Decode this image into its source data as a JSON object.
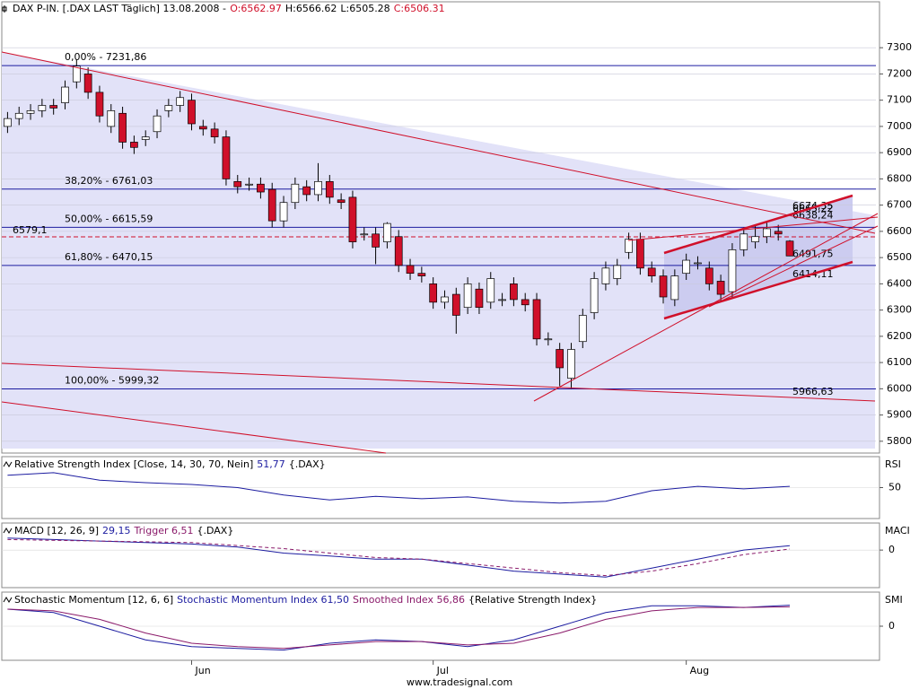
{
  "chart_data": [
    {
      "type": "candlestick",
      "title": "DAX P-IN. [.DAX LAST Täglich] 13.08.2008 -",
      "ohlc_labels": [
        "O:6562.97",
        "H:6566.62",
        "L:6505.28",
        "C:6506.31"
      ],
      "categories": [
        null,
        null,
        null,
        null,
        null,
        null,
        null,
        null,
        null,
        null,
        null,
        null,
        null,
        null,
        null,
        null,
        "Jun",
        null,
        null,
        null,
        null,
        null,
        null,
        null,
        null,
        null,
        null,
        null,
        null,
        null,
        null,
        null,
        null,
        null,
        null,
        null,
        null,
        "Jul",
        null,
        null,
        null,
        null,
        null,
        null,
        null,
        null,
        null,
        null,
        null,
        null,
        null,
        null,
        null,
        null,
        null,
        null,
        null,
        null,
        null,
        "Aug",
        null,
        null,
        null,
        null,
        null,
        null,
        null,
        null,
        null
      ],
      "open": [
        7000,
        7030,
        7050,
        7060,
        7080,
        7090,
        7170,
        7200,
        7130,
        7000,
        7050,
        6940,
        6950,
        6980,
        7060,
        7080,
        7100,
        7000,
        6990,
        6960,
        6790,
        6780,
        6780,
        6760,
        6640,
        6710,
        6770,
        6740,
        6790,
        6720,
        6730,
        6590,
        6590,
        6560,
        6580,
        6470,
        6440,
        6400,
        6330,
        6360,
        6310,
        6380,
        6330,
        6340,
        6400,
        6340,
        6340,
        6190,
        6150,
        6040,
        6180,
        6290,
        6400,
        6420,
        6520,
        6570,
        6460,
        6430,
        6340,
        6440,
        6480,
        6460,
        6410,
        6370,
        6530,
        6560,
        6580,
        6600,
        6562.97
      ],
      "high": [
        7055,
        7075,
        7085,
        7105,
        7105,
        7175,
        7255,
        7225,
        7155,
        7085,
        7075,
        6965,
        6985,
        7065,
        7105,
        7135,
        7125,
        7025,
        7015,
        6985,
        6815,
        6805,
        6805,
        6785,
        6735,
        6805,
        6795,
        6860,
        6815,
        6745,
        6755,
        6615,
        6615,
        6635,
        6605,
        6495,
        6465,
        6425,
        6375,
        6385,
        6425,
        6405,
        6445,
        6365,
        6425,
        6365,
        6365,
        6215,
        6175,
        6175,
        6305,
        6445,
        6485,
        6495,
        6595,
        6595,
        6485,
        6455,
        6455,
        6515,
        6505,
        6485,
        6435,
        6555,
        6615,
        6620,
        6635,
        6625,
        6566.62
      ],
      "low": [
        6975,
        7005,
        7025,
        7035,
        7045,
        7065,
        7145,
        7105,
        7015,
        6975,
        6915,
        6895,
        6925,
        6955,
        7035,
        7055,
        6985,
        6965,
        6935,
        6775,
        6745,
        6755,
        6725,
        6615,
        6615,
        6685,
        6715,
        6715,
        6705,
        6685,
        6535,
        6565,
        6475,
        6535,
        6445,
        6415,
        6405,
        6305,
        6305,
        6210,
        6285,
        6285,
        6305,
        6315,
        6315,
        6295,
        6165,
        6165,
        6010,
        6000,
        6155,
        6265,
        6375,
        6395,
        6495,
        6435,
        6405,
        6325,
        6315,
        6415,
        6455,
        6375,
        6335,
        6345,
        6505,
        6535,
        6555,
        6565,
        6505.28
      ],
      "close": [
        7030,
        7050,
        7060,
        7080,
        7070,
        7150,
        7230,
        7130,
        7040,
        7060,
        6940,
        6920,
        6960,
        7040,
        7080,
        7110,
        7010,
        6990,
        6960,
        6800,
        6770,
        6780,
        6750,
        6640,
        6710,
        6780,
        6740,
        6790,
        6730,
        6710,
        6560,
        6590,
        6540,
        6630,
        6470,
        6440,
        6430,
        6330,
        6350,
        6280,
        6400,
        6310,
        6420,
        6340,
        6340,
        6320,
        6190,
        6190,
        6080,
        6150,
        6280,
        6420,
        6460,
        6470,
        6570,
        6460,
        6430,
        6350,
        6430,
        6490,
        6480,
        6400,
        6360,
        6530,
        6590,
        6580,
        6610,
        6590,
        6506.31
      ],
      "up_color": "#ffffff",
      "down_color": "#d0102a",
      "ylim": [
        5755,
        7475
      ],
      "yticks": [
        5800,
        5900,
        6000,
        6100,
        6200,
        6300,
        6400,
        6500,
        6600,
        6700,
        6800,
        6900,
        7000,
        7100,
        7200,
        7300
      ],
      "levels": [
        {
          "label": "0,00% - 7231,86",
          "value": 7231.86
        },
        {
          "label": "38,20% - 6761,03",
          "value": 6761.03
        },
        {
          "label": "50,00% - 6615,59",
          "value": 6615.59
        },
        {
          "label": "61,80% - 6470,15",
          "value": 6470.15
        },
        {
          "label": "100,00% - 5999,32",
          "value": 5999.32
        }
      ],
      "level_color": "#1c1ca0",
      "markers": [
        {
          "label": "6579,1",
          "value": 6579.1
        }
      ],
      "price_labels": [
        {
          "label": "6674,35",
          "value": 6674.35
        },
        {
          "label": "6665,22",
          "value": 6665.22
        },
        {
          "label": "6638,24",
          "value": 6638.24
        },
        {
          "label": "6491,75",
          "value": 6491.75
        },
        {
          "label": "6414,11",
          "value": 6414.11
        },
        {
          "label": "5966,63",
          "value": 5966.63
        }
      ],
      "marker_color": "#d0102a"
    },
    {
      "type": "line",
      "title": "Relative Strength Index [Close, 14, 30, 70, Nein]",
      "source": "{.DAX}",
      "axis_label": "RSI",
      "x": [
        0,
        4,
        8,
        12,
        16,
        20,
        24,
        28,
        32,
        36,
        40,
        44,
        48,
        52,
        56,
        60,
        64,
        68
      ],
      "xlim": [
        -0.5,
        75.8
      ],
      "series": [
        {
          "name": "51,77",
          "color": "#1c1ca0",
          "values": [
            70,
            74,
            62,
            58,
            55,
            50,
            38,
            30,
            36,
            32,
            35,
            28,
            25,
            28,
            45,
            52,
            48,
            52
          ]
        }
      ],
      "ylim": [
        0,
        100
      ],
      "yticks": [
        50
      ]
    },
    {
      "type": "line",
      "title": "MACD [12, 26, 9]",
      "source": "{.DAX}",
      "axis_label": "MACI",
      "x": [
        0,
        4,
        8,
        12,
        16,
        20,
        24,
        28,
        32,
        36,
        40,
        44,
        48,
        52,
        56,
        60,
        64,
        68
      ],
      "xlim": [
        -0.5,
        75.8
      ],
      "series": [
        {
          "name": "29,15",
          "color": "#1c1ca0",
          "values": [
            80,
            70,
            60,
            50,
            40,
            20,
            -20,
            -40,
            -60,
            -60,
            -100,
            -140,
            -160,
            -180,
            -120,
            -60,
            0,
            29
          ]
        },
        {
          "name": "Trigger 6,51",
          "color": "#8a1a6a",
          "dash": true,
          "values": [
            70,
            65,
            60,
            55,
            50,
            30,
            10,
            -20,
            -50,
            -60,
            -90,
            -120,
            -150,
            -170,
            -140,
            -90,
            -30,
            6.51
          ]
        }
      ],
      "ylim": [
        -250,
        180
      ],
      "yticks": [
        0
      ]
    },
    {
      "type": "line",
      "title": "Stochastic Momentum [12, 6, 6]",
      "source": "{Relative Strength Index}",
      "axis_label": "SMI",
      "x": [
        0,
        4,
        8,
        12,
        16,
        20,
        24,
        28,
        32,
        36,
        40,
        44,
        48,
        52,
        56,
        60,
        64,
        68
      ],
      "xlim": [
        -0.5,
        75.8
      ],
      "series": [
        {
          "name": "Stochastic Momentum Index 61,50",
          "color": "#1c1ca0",
          "values": [
            50,
            40,
            0,
            -40,
            -60,
            -65,
            -70,
            -50,
            -40,
            -45,
            -60,
            -40,
            0,
            40,
            60,
            60,
            55,
            61.5
          ]
        },
        {
          "name": "Smoothed Index 56,86",
          "color": "#8a1a6a",
          "values": [
            50,
            45,
            20,
            -20,
            -50,
            -60,
            -65,
            -55,
            -45,
            -45,
            -55,
            -50,
            -20,
            20,
            45,
            55,
            55,
            56.86
          ]
        }
      ],
      "ylim": [
        -100,
        100
      ],
      "yticks": [
        0
      ]
    }
  ],
  "footer": "www.tradesignal.com"
}
